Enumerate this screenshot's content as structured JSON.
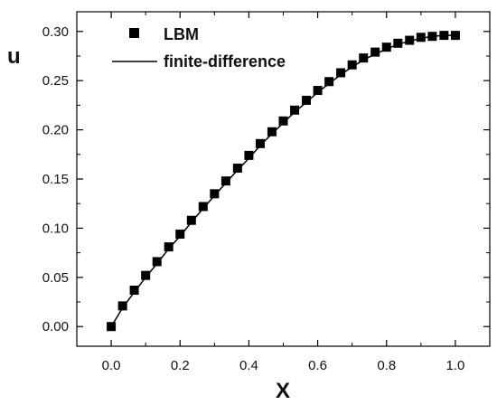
{
  "chart_data": {
    "type": "line",
    "title": "",
    "xlabel": "X",
    "ylabel": "u",
    "xlim": [
      -0.1,
      1.1
    ],
    "ylim": [
      -0.02,
      0.32
    ],
    "x_ticks": [
      "0.0",
      "0.2",
      "0.4",
      "0.6",
      "0.8",
      "1.0"
    ],
    "y_ticks": [
      "0.00",
      "0.05",
      "0.10",
      "0.15",
      "0.20",
      "0.25",
      "0.30"
    ],
    "grid": false,
    "legend_placement": "top-left",
    "series": [
      {
        "name": "LBM",
        "style": "markers",
        "marker": "filled-square",
        "color": "#000000",
        "x": [
          0.0,
          0.033,
          0.067,
          0.1,
          0.133,
          0.167,
          0.2,
          0.233,
          0.267,
          0.3,
          0.333,
          0.367,
          0.4,
          0.433,
          0.467,
          0.5,
          0.533,
          0.567,
          0.6,
          0.633,
          0.667,
          0.7,
          0.733,
          0.767,
          0.8,
          0.833,
          0.867,
          0.9,
          0.933,
          0.967,
          1.0
        ],
        "y": [
          0.0,
          0.021,
          0.037,
          0.052,
          0.066,
          0.081,
          0.094,
          0.108,
          0.122,
          0.135,
          0.148,
          0.161,
          0.174,
          0.186,
          0.198,
          0.209,
          0.22,
          0.23,
          0.24,
          0.249,
          0.258,
          0.266,
          0.273,
          0.279,
          0.284,
          0.288,
          0.291,
          0.294,
          0.295,
          0.296,
          0.296
        ]
      },
      {
        "name": "finite-difference",
        "style": "line",
        "color": "#000000",
        "x": [
          0.0,
          0.033,
          0.067,
          0.1,
          0.133,
          0.167,
          0.2,
          0.233,
          0.267,
          0.3,
          0.333,
          0.367,
          0.4,
          0.433,
          0.467,
          0.5,
          0.533,
          0.567,
          0.6,
          0.633,
          0.667,
          0.7,
          0.733,
          0.767,
          0.8,
          0.833,
          0.867,
          0.9,
          0.933,
          0.967,
          1.0
        ],
        "y": [
          0.0,
          0.019,
          0.035,
          0.05,
          0.064,
          0.079,
          0.092,
          0.106,
          0.12,
          0.133,
          0.146,
          0.159,
          0.171,
          0.184,
          0.196,
          0.207,
          0.218,
          0.228,
          0.238,
          0.247,
          0.256,
          0.264,
          0.271,
          0.277,
          0.282,
          0.287,
          0.29,
          0.293,
          0.295,
          0.296,
          0.296
        ]
      }
    ]
  }
}
